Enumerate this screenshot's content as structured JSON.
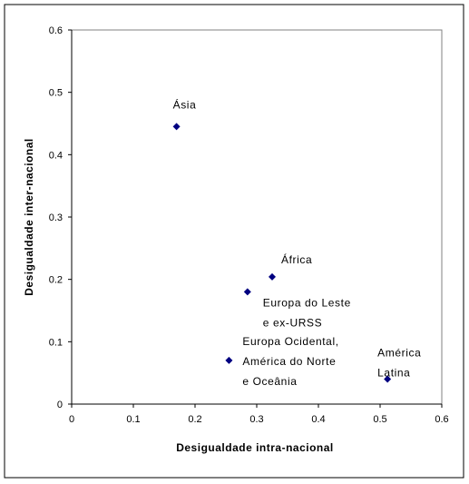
{
  "chart_data": {
    "type": "scatter",
    "xlabel": "Desigualdade intra-nacional",
    "ylabel": "Desigualdade inter-nacional",
    "xlim": [
      0,
      0.6
    ],
    "ylim": [
      0,
      0.6
    ],
    "x_ticks": [
      "0",
      "0.1",
      "0.2",
      "0.3",
      "0.4",
      "0.5",
      "0.6"
    ],
    "y_ticks": [
      "0",
      "0.1",
      "0.2",
      "0.3",
      "0.4",
      "0.5",
      "0.6"
    ],
    "grid": false,
    "legend": "none",
    "marker_color": "#000080",
    "points": [
      {
        "x": 0.17,
        "y": 0.445,
        "label_lines": [
          "Ásia"
        ]
      },
      {
        "x": 0.325,
        "y": 0.204,
        "label_lines": [
          "África"
        ]
      },
      {
        "x": 0.285,
        "y": 0.18,
        "label_lines": [
          "Europa do Leste",
          "e ex-URSS"
        ]
      },
      {
        "x": 0.255,
        "y": 0.07,
        "label_lines": [
          "Europa Ocidental,",
          "América do Norte",
          "e Oceânia"
        ]
      },
      {
        "x": 0.512,
        "y": 0.04,
        "label_lines": [
          "América",
          "Latina"
        ]
      }
    ]
  }
}
